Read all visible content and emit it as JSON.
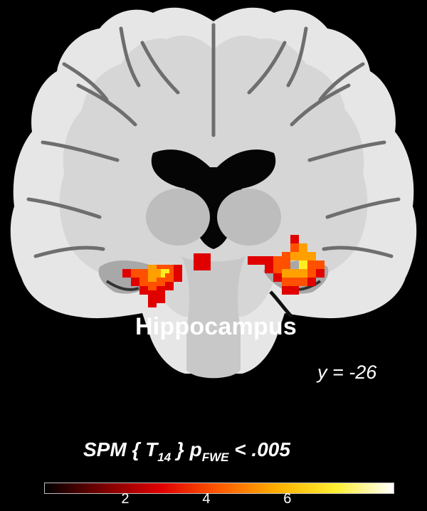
{
  "figure": {
    "region_label": "Hippocampus",
    "slice_coordinate": "y = -26",
    "stat_title": {
      "prefix": "SPM { T",
      "df": "14",
      "middle": " } p",
      "correction": "FWE",
      "suffix": " < .005"
    }
  },
  "colorbar": {
    "gradient_colors": [
      "#000000",
      "#7a0000",
      "#e00000",
      "#ff5a00",
      "#ffb000",
      "#ffee30",
      "#ffffff"
    ],
    "ticks": [
      {
        "value": 2,
        "label": "2"
      },
      {
        "value": 4,
        "label": "4"
      },
      {
        "value": 6,
        "label": "6"
      }
    ],
    "range": [
      0,
      8.6
    ]
  },
  "activation_colors": {
    "low": "#e00000",
    "mid": "#ff5000",
    "high": "#ffa000",
    "peak": "#ffee20"
  }
}
